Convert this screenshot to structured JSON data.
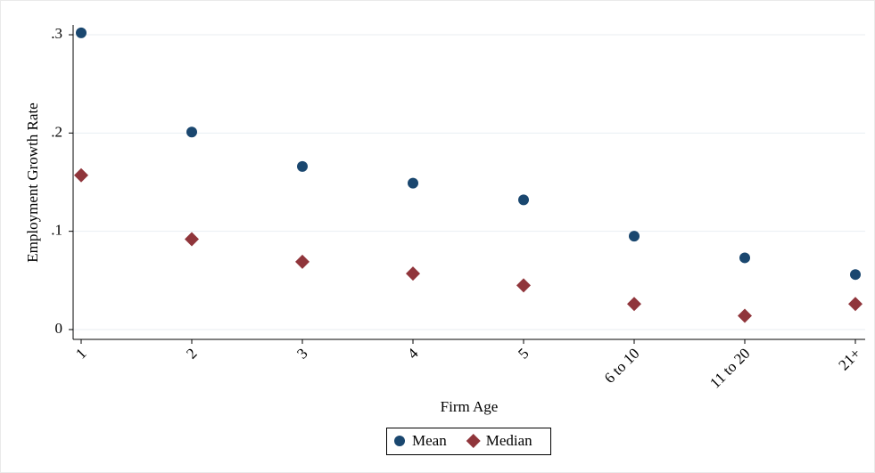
{
  "chart_data": {
    "type": "scatter",
    "x_label": "Firm Age",
    "y_label": "Employment Growth Rate",
    "categories": [
      "1",
      "2",
      "3",
      "4",
      "5",
      "6 to 10",
      "11 to 20",
      "21+"
    ],
    "series": [
      {
        "name": "Mean",
        "color": "#1a476f",
        "marker": "circle",
        "values": [
          0.302,
          0.201,
          0.166,
          0.149,
          0.132,
          0.095,
          0.073,
          0.056
        ]
      },
      {
        "name": "Median",
        "color": "#90353b",
        "marker": "diamond",
        "values": [
          0.157,
          0.092,
          0.069,
          0.057,
          0.045,
          0.026,
          0.014,
          0.026
        ]
      }
    ],
    "ylim": [
      -0.01,
      0.31
    ],
    "yticks": [
      0,
      {
        "value": 0.1,
        "label": ".1"
      },
      {
        "value": 0.2,
        "label": ".2"
      },
      {
        "value": 0.3,
        "label": ".3"
      }
    ],
    "grid": true,
    "legend": "bottom"
  }
}
